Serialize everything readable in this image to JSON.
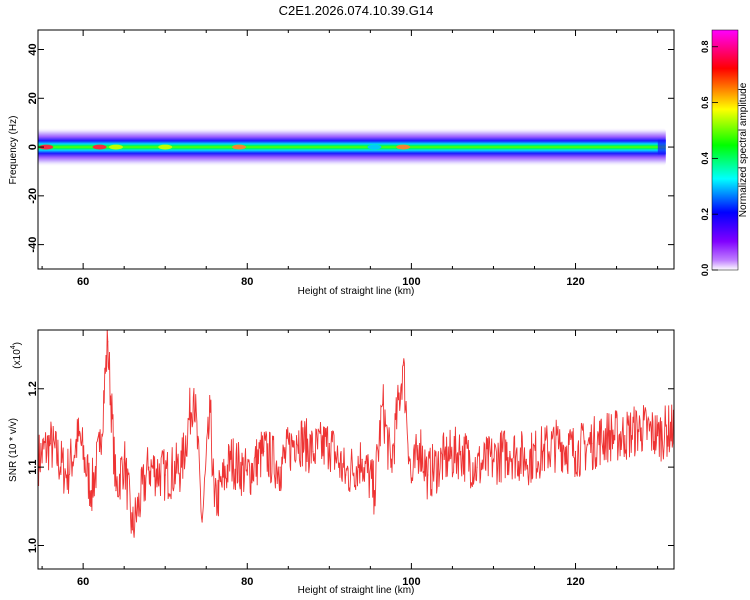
{
  "title": "C2E1.2026.074.10.39.G14",
  "chart_data": [
    {
      "type": "heatmap",
      "xlabel": "Height of straight line (km)",
      "ylabel": "Frequency (Hz)",
      "xlim": [
        54.5,
        132
      ],
      "ylim": [
        -50,
        48
      ],
      "xticks": [
        60,
        80,
        100,
        120
      ],
      "xtick_labels": [
        "60",
        "80",
        "100",
        "120"
      ],
      "yticks": [
        -40,
        -20,
        0,
        20,
        40
      ],
      "ytick_labels": [
        "-40",
        "-20",
        "0",
        "20",
        "40"
      ],
      "colorbar": {
        "label": "Normalized spectral amplitude",
        "range": [
          0,
          0.86
        ],
        "ticks": [
          0,
          0.2,
          0.4,
          0.6,
          0.8
        ],
        "tick_labels": [
          "0.0",
          "0.2",
          "0.4",
          "0.6",
          "0.8"
        ],
        "colormap": [
          "#ffffff",
          "#8000ff",
          "#0000ff",
          "#00ffff",
          "#00ff00",
          "#ffff00",
          "#ff0000",
          "#ff00ff"
        ]
      },
      "band": {
        "center_hz": 0,
        "halfwidth_hz": 5,
        "peak_amplitude": 0.55
      },
      "hotspots": [
        {
          "x": 55.5,
          "amplitude": 0.86
        },
        {
          "x": 62,
          "amplitude": 0.84
        },
        {
          "x": 64,
          "amplitude": 0.7
        },
        {
          "x": 70,
          "amplitude": 0.7
        },
        {
          "x": 79,
          "amplitude": 0.72
        },
        {
          "x": 95.5,
          "amplitude": 0.25
        },
        {
          "x": 99,
          "amplitude": 0.8
        }
      ]
    },
    {
      "type": "line",
      "xlabel": "Height of straight line (km)",
      "ylabel": "SNR (10 * v/v)",
      "multiplier_label": "(x10",
      "multiplier_exponent": "4",
      "xlim": [
        54.5,
        132
      ],
      "ylim": [
        0.97,
        1.275
      ],
      "xticks": [
        60,
        80,
        100,
        120
      ],
      "xtick_labels": [
        "60",
        "80",
        "100",
        "120"
      ],
      "yticks": [
        1.0,
        1.1,
        1.2
      ],
      "ytick_labels": [
        "1.0",
        "1.1",
        "1.2"
      ],
      "color": "#ee3333",
      "x": [
        54.5,
        56,
        58,
        59.5,
        61,
        62,
        63,
        64,
        65,
        66,
        68,
        70,
        72,
        73.5,
        74.5,
        75.5,
        76,
        78,
        80,
        82,
        84,
        86,
        88,
        90,
        92,
        94,
        95.5,
        96.5,
        97.5,
        99,
        100,
        101,
        102,
        104,
        106,
        108,
        110,
        112,
        114,
        116,
        118,
        120,
        122,
        124,
        126,
        128,
        130,
        132
      ],
      "y": [
        1.11,
        1.13,
        1.09,
        1.14,
        1.07,
        1.12,
        1.26,
        1.07,
        1.11,
        1.02,
        1.1,
        1.09,
        1.1,
        1.2,
        1.03,
        1.17,
        1.05,
        1.11,
        1.09,
        1.12,
        1.1,
        1.14,
        1.12,
        1.13,
        1.09,
        1.11,
        1.07,
        1.18,
        1.1,
        1.23,
        1.08,
        1.13,
        1.09,
        1.11,
        1.12,
        1.1,
        1.11,
        1.12,
        1.11,
        1.12,
        1.13,
        1.12,
        1.13,
        1.14,
        1.14,
        1.15,
        1.14,
        1.15
      ]
    }
  ]
}
